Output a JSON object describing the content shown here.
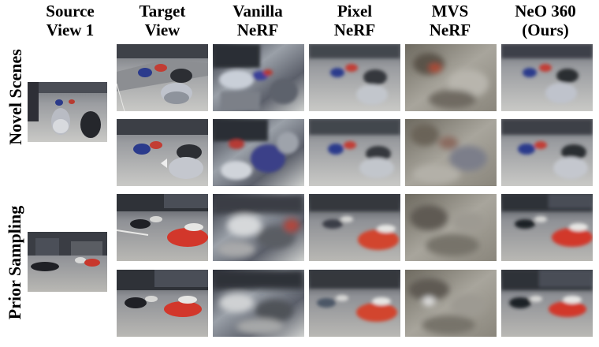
{
  "headers": [
    {
      "line1": "Source",
      "line2": "View 1"
    },
    {
      "line1": "Target",
      "line2": "View"
    },
    {
      "line1": "Vanilla",
      "line2": "NeRF"
    },
    {
      "line1": "Pixel",
      "line2": "NeRF"
    },
    {
      "line1": "MVS",
      "line2": "NeRF"
    },
    {
      "line1": "NeO 360",
      "line2": "(Ours)"
    }
  ],
  "row_labels": {
    "group1": "Novel Scenes",
    "group2": "Prior Sampling"
  },
  "thumbnails": {
    "source_1": "source-view-street-scene-1",
    "source_2": "source-view-street-scene-2"
  }
}
